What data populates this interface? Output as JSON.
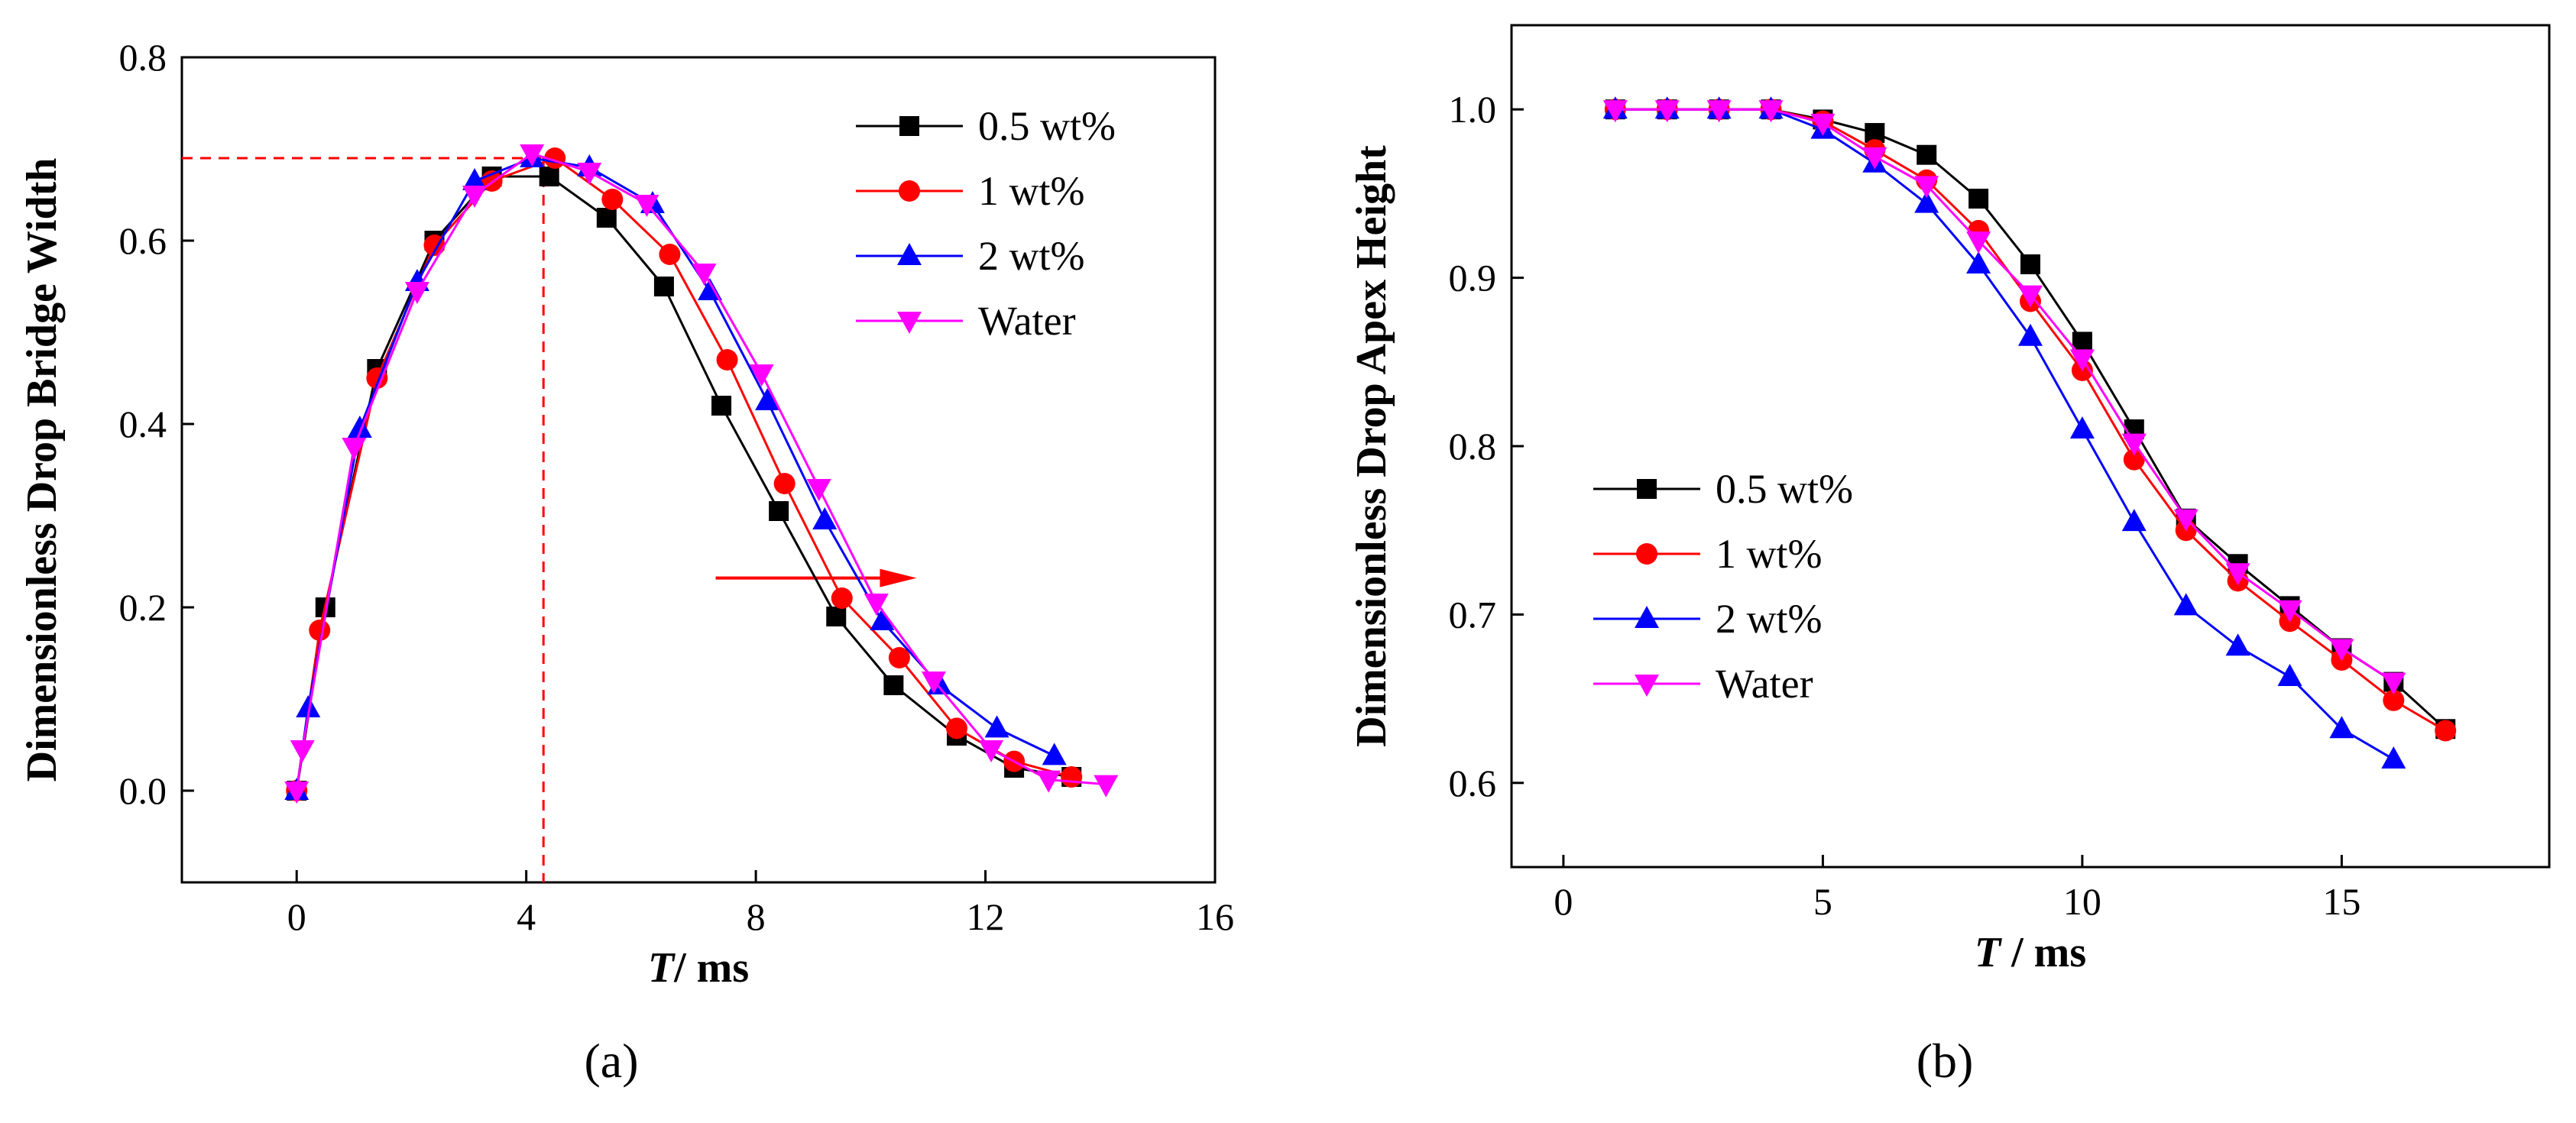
{
  "chart_data": [
    {
      "panel_label": "(a)",
      "type": "line",
      "xlabel_italic": "T",
      "xlabel_rest": "/ ms",
      "ylabel": "Dimensionless Drop Bridge  Width",
      "xlim": [
        -2,
        16
      ],
      "ylim": [
        -0.1,
        0.8
      ],
      "xticks": [
        0,
        4,
        8,
        12,
        16
      ],
      "yticks": [
        0.0,
        0.2,
        0.4,
        0.6,
        0.8
      ],
      "xtick_labels": [
        "0",
        "4",
        "8",
        "12",
        "16"
      ],
      "ytick_labels": [
        "0.0",
        "0.2",
        "0.4",
        "0.6",
        "0.8"
      ],
      "legend_position": "top-right",
      "annotations": {
        "reference_point": {
          "x": 4.3,
          "y": 0.69
        },
        "arrow": {
          "x_from": 7.3,
          "x_to": 10.8,
          "y": 0.232
        }
      },
      "series": [
        {
          "name": "0.5 wt%",
          "color": "#000000",
          "marker": "square",
          "x": [
            0,
            0.5,
            1.4,
            2.4,
            3.4,
            4.4,
            5.4,
            6.4,
            7.4,
            8.4,
            9.4,
            10.4,
            11.5,
            12.5,
            13.5
          ],
          "y": [
            0,
            0.2,
            0.46,
            0.6,
            0.67,
            0.67,
            0.625,
            0.55,
            0.42,
            0.305,
            0.19,
            0.115,
            0.06,
            0.025,
            0.015
          ]
        },
        {
          "name": "1 wt%",
          "color": "#ff0000",
          "marker": "circle",
          "x": [
            0,
            0.4,
            1.4,
            2.4,
            3.4,
            4.5,
            5.5,
            6.5,
            7.5,
            8.5,
            9.5,
            10.5,
            11.5,
            12.5,
            13.5
          ],
          "y": [
            0,
            0.175,
            0.45,
            0.595,
            0.665,
            0.69,
            0.645,
            0.585,
            0.47,
            0.335,
            0.21,
            0.145,
            0.068,
            0.032,
            0.015
          ]
        },
        {
          "name": "2 wt%",
          "color": "#0000ff",
          "marker": "triangle-up",
          "x": [
            0,
            0.2,
            1.1,
            2.1,
            3.1,
            4.1,
            5.1,
            6.2,
            7.2,
            8.2,
            9.2,
            10.2,
            11.2,
            12.2,
            13.2
          ],
          "y": [
            0,
            0.09,
            0.395,
            0.555,
            0.665,
            0.69,
            0.68,
            0.64,
            0.545,
            0.425,
            0.295,
            0.185,
            0.115,
            0.068,
            0.038
          ]
        },
        {
          "name": "Water",
          "color": "#ff00ff",
          "marker": "triangle-down",
          "x": [
            0,
            0.1,
            1.0,
            2.1,
            3.1,
            4.1,
            5.1,
            6.1,
            7.1,
            8.1,
            9.1,
            10.1,
            11.1,
            12.1,
            13.1,
            14.1
          ],
          "y": [
            0,
            0.045,
            0.375,
            0.545,
            0.65,
            0.695,
            0.675,
            0.64,
            0.565,
            0.455,
            0.33,
            0.205,
            0.12,
            0.045,
            0.012,
            0.007
          ]
        }
      ]
    },
    {
      "panel_label": "(b)",
      "type": "line",
      "xlabel_italic": "T",
      "xlabel_rest": " / ms",
      "ylabel": "Dimensionless Drop Apex  Height",
      "xlim": [
        -1,
        19
      ],
      "ylim": [
        0.55,
        1.05
      ],
      "xticks": [
        0,
        5,
        10,
        15
      ],
      "yticks": [
        0.6,
        0.7,
        0.8,
        0.9,
        1.0
      ],
      "xtick_labels": [
        "0",
        "5",
        "10",
        "15"
      ],
      "ytick_labels": [
        "0.6",
        "0.7",
        "0.8",
        "0.9",
        "1.0"
      ],
      "legend_position": "left-middle",
      "series": [
        {
          "name": "0.5 wt%",
          "color": "#000000",
          "marker": "square",
          "x": [
            1,
            2,
            3,
            4,
            5,
            6,
            7,
            8,
            9,
            10,
            11,
            12,
            13,
            14,
            15,
            16,
            17
          ],
          "y": [
            1.0,
            1.0,
            1.0,
            1.0,
            0.994,
            0.986,
            0.973,
            0.947,
            0.908,
            0.862,
            0.81,
            0.757,
            0.73,
            0.705,
            0.68,
            0.66,
            0.632
          ]
        },
        {
          "name": "1 wt%",
          "color": "#ff0000",
          "marker": "circle",
          "x": [
            1,
            2,
            3,
            4,
            5,
            6,
            7,
            8,
            9,
            10,
            11,
            12,
            13,
            14,
            15,
            16,
            17
          ],
          "y": [
            1.0,
            1.0,
            1.0,
            1.0,
            0.993,
            0.976,
            0.958,
            0.928,
            0.886,
            0.845,
            0.792,
            0.75,
            0.72,
            0.696,
            0.673,
            0.649,
            0.631
          ]
        },
        {
          "name": "2 wt%",
          "color": "#0000ff",
          "marker": "triangle-up",
          "x": [
            1,
            2,
            3,
            4,
            5,
            6,
            7,
            8,
            9,
            10,
            11,
            12,
            13,
            14,
            15,
            16
          ],
          "y": [
            1.0,
            1.0,
            1.0,
            1.0,
            0.988,
            0.968,
            0.944,
            0.908,
            0.865,
            0.81,
            0.755,
            0.705,
            0.681,
            0.663,
            0.632,
            0.614
          ]
        },
        {
          "name": "Water",
          "color": "#ff00ff",
          "marker": "triangle-down",
          "x": [
            1,
            2,
            3,
            4,
            5,
            6,
            7,
            8,
            9,
            10,
            11,
            12,
            13,
            14,
            15,
            16
          ],
          "y": [
            1.0,
            1.0,
            1.0,
            1.0,
            0.992,
            0.972,
            0.955,
            0.922,
            0.89,
            0.852,
            0.802,
            0.757,
            0.725,
            0.703,
            0.68,
            0.66
          ]
        }
      ]
    }
  ]
}
